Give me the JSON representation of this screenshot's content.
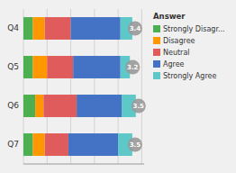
{
  "chart_data": {
    "type": "bar",
    "orientation": "horizontal",
    "stacked": true,
    "categories": [
      "Q7",
      "Q6",
      "Q5",
      "Q4"
    ],
    "series": [
      {
        "name": "Strongly Disagr...",
        "color": "#4caf50",
        "values": [
          0.08,
          0.1,
          0.08,
          0.08
        ]
      },
      {
        "name": "Disagree",
        "color": "#ff9800",
        "values": [
          0.1,
          0.07,
          0.12,
          0.1
        ]
      },
      {
        "name": "Neutral",
        "color": "#e05c5c",
        "values": [
          0.2,
          0.28,
          0.22,
          0.22
        ]
      },
      {
        "name": "Agree",
        "color": "#4472c4",
        "values": [
          0.42,
          0.38,
          0.4,
          0.42
        ]
      },
      {
        "name": "Strongly Agree",
        "color": "#5ec8c8",
        "values": [
          0.12,
          0.12,
          0.08,
          0.1
        ]
      }
    ],
    "annotations": [
      "3.5",
      "3.5",
      "3.2",
      "3.4"
    ],
    "legend_title": "Answer",
    "legend": "right",
    "xlim": [
      0,
      1.02
    ],
    "xticks": [
      0,
      0.2,
      0.4,
      0.6,
      0.8,
      1.0
    ],
    "grid": true,
    "tick_labels": "y"
  }
}
